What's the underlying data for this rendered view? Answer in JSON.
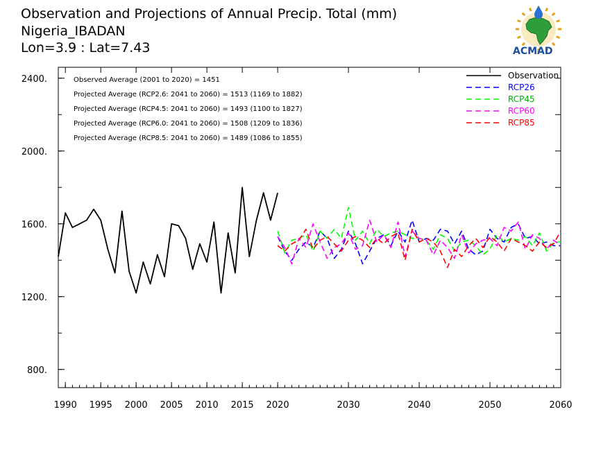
{
  "header": {
    "title": "Observation and Projections of Annual Precip. Total (mm)",
    "location": "Nigeria_IBADAN",
    "coords": "Lon=3.9 : Lat=7.43"
  },
  "logo": {
    "text": "ACMAD"
  },
  "colors": {
    "observation": "#000000",
    "rcp26": "#0000ff",
    "rcp45": "#00ff00",
    "rcp60": "#ff00ff",
    "rcp85": "#ff0000"
  },
  "chart_data": {
    "type": "line",
    "xlim": [
      1989,
      2060
    ],
    "ylim": [
      700,
      2460
    ],
    "x_ticks": [
      1990,
      1995,
      2000,
      2005,
      2010,
      2015,
      2020,
      2030,
      2040,
      2050,
      2060
    ],
    "x_tick_labels": [
      "1990",
      "1995",
      "2000",
      "2005",
      "2010",
      "2015",
      "2020",
      "2030",
      "2040",
      "2050",
      "2060"
    ],
    "y_ticks": [
      800,
      1200,
      1600,
      2000,
      2400
    ],
    "y_tick_labels": [
      "800.",
      "1200.",
      "1600.",
      "2000.",
      "2400."
    ],
    "legend_position": "top-right",
    "annotations": [
      "Observed Average (2001 to 2020) = 1451",
      "Projected Average (RCP2.6: 2041 to 2060) = 1513 (1169 to 1882)",
      "Projected Average (RCP4.5: 2041 to 2060) = 1493 (1100 to 1827)",
      "Projected Average (RCP6.0: 2041 to 2060) = 1508 (1209 to 1836)",
      "Projected Average (RCP8.5: 2041 to 2060) = 1489 (1086 to 1855)"
    ],
    "series": [
      {
        "name": "Observation",
        "style": "solid",
        "x": [
          1989,
          1990,
          1991,
          1992,
          1993,
          1994,
          1995,
          1996,
          1997,
          1998,
          1999,
          2000,
          2001,
          2002,
          2003,
          2004,
          2005,
          2006,
          2007,
          2008,
          2009,
          2010,
          2011,
          2012,
          2013,
          2014,
          2015,
          2016,
          2017,
          2018,
          2019,
          2020
        ],
        "y": [
          1420,
          1660,
          1580,
          1600,
          1620,
          1680,
          1620,
          1460,
          1330,
          1670,
          1340,
          1220,
          1390,
          1270,
          1430,
          1310,
          1600,
          1590,
          1520,
          1350,
          1490,
          1390,
          1610,
          1220,
          1550,
          1330,
          1800,
          1420,
          1620,
          1770,
          1620,
          1770
        ]
      },
      {
        "name": "RCP26",
        "style": "dashed",
        "x": [
          2020,
          2021,
          2022,
          2023,
          2024,
          2025,
          2026,
          2027,
          2028,
          2029,
          2030,
          2031,
          2032,
          2033,
          2034,
          2035,
          2036,
          2037,
          2038,
          2039,
          2040,
          2041,
          2042,
          2043,
          2044,
          2045,
          2046,
          2047,
          2048,
          2049,
          2050,
          2051,
          2052,
          2053,
          2054,
          2055,
          2056,
          2057,
          2058,
          2059,
          2060
        ],
        "y": [
          1530,
          1450,
          1400,
          1460,
          1500,
          1470,
          1560,
          1520,
          1410,
          1460,
          1560,
          1490,
          1380,
          1450,
          1520,
          1540,
          1480,
          1560,
          1500,
          1620,
          1500,
          1520,
          1510,
          1570,
          1560,
          1490,
          1560,
          1460,
          1430,
          1450,
          1570,
          1520,
          1500,
          1580,
          1600,
          1520,
          1530,
          1490,
          1500,
          1480,
          1480
        ]
      },
      {
        "name": "RCP45",
        "style": "dashed",
        "x": [
          2020,
          2021,
          2022,
          2023,
          2024,
          2025,
          2026,
          2027,
          2028,
          2029,
          2030,
          2031,
          2032,
          2033,
          2034,
          2035,
          2036,
          2037,
          2038,
          2039,
          2040,
          2041,
          2042,
          2043,
          2044,
          2045,
          2046,
          2047,
          2048,
          2049,
          2050,
          2051,
          2052,
          2053,
          2054,
          2055,
          2056,
          2057,
          2058,
          2059,
          2060
        ],
        "y": [
          1560,
          1440,
          1510,
          1520,
          1540,
          1450,
          1560,
          1520,
          1570,
          1520,
          1690,
          1510,
          1560,
          1490,
          1570,
          1530,
          1550,
          1560,
          1540,
          1520,
          1520,
          1510,
          1460,
          1540,
          1520,
          1450,
          1500,
          1510,
          1480,
          1430,
          1460,
          1540,
          1500,
          1520,
          1510,
          1530,
          1480,
          1550,
          1450,
          1500,
          1500
        ]
      },
      {
        "name": "RCP60",
        "style": "dashed",
        "x": [
          2020,
          2021,
          2022,
          2023,
          2024,
          2025,
          2026,
          2027,
          2028,
          2029,
          2030,
          2031,
          2032,
          2033,
          2034,
          2035,
          2036,
          2037,
          2038,
          2039,
          2040,
          2041,
          2042,
          2043,
          2044,
          2045,
          2046,
          2047,
          2048,
          2049,
          2050,
          2051,
          2052,
          2053,
          2054,
          2055,
          2056,
          2057,
          2058,
          2059,
          2060
        ],
        "y": [
          1530,
          1470,
          1380,
          1520,
          1470,
          1600,
          1500,
          1410,
          1470,
          1490,
          1550,
          1460,
          1480,
          1620,
          1500,
          1540,
          1470,
          1610,
          1420,
          1560,
          1520,
          1510,
          1430,
          1510,
          1470,
          1410,
          1540,
          1440,
          1490,
          1510,
          1520,
          1480,
          1580,
          1560,
          1610,
          1460,
          1540,
          1520,
          1460,
          1510,
          1480
        ]
      },
      {
        "name": "RCP85",
        "style": "dashed",
        "x": [
          2020,
          2021,
          2022,
          2023,
          2024,
          2025,
          2026,
          2027,
          2028,
          2029,
          2030,
          2031,
          2032,
          2033,
          2034,
          2035,
          2036,
          2037,
          2038,
          2039,
          2040,
          2041,
          2042,
          2043,
          2044,
          2045,
          2046,
          2047,
          2048,
          2049,
          2050,
          2051,
          2052,
          2053,
          2054,
          2055,
          2056,
          2057,
          2058,
          2059,
          2060
        ],
        "y": [
          1480,
          1450,
          1490,
          1510,
          1570,
          1460,
          1510,
          1530,
          1490,
          1450,
          1510,
          1530,
          1510,
          1470,
          1520,
          1490,
          1530,
          1550,
          1400,
          1570,
          1500,
          1520,
          1500,
          1450,
          1360,
          1460,
          1420,
          1480,
          1520,
          1470,
          1530,
          1500,
          1450,
          1520,
          1500,
          1480,
          1450,
          1500,
          1470,
          1490,
          1560
        ]
      }
    ]
  }
}
